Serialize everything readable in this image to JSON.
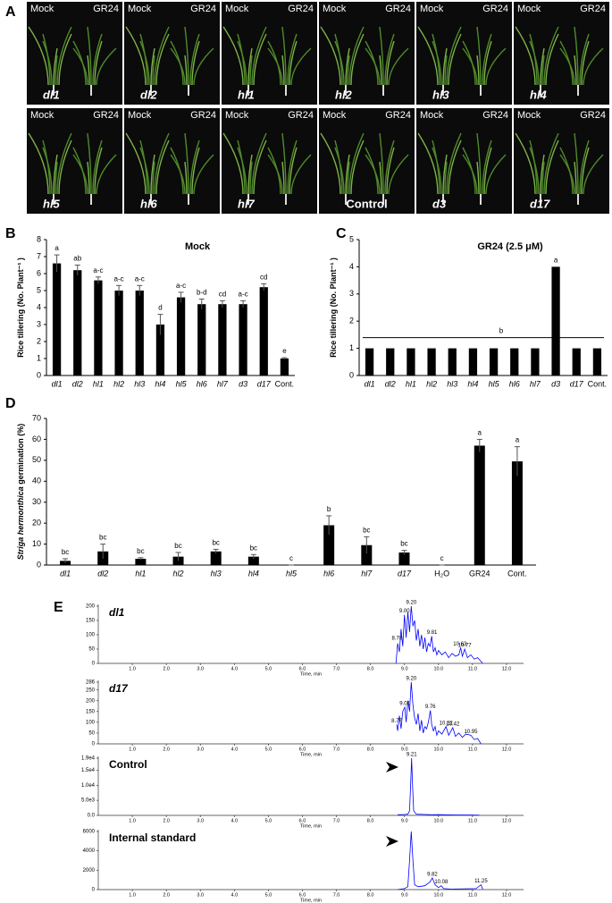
{
  "panel_labels": [
    "A",
    "B",
    "C",
    "D",
    "E"
  ],
  "photos": {
    "left": "Mock",
    "right": "GR24",
    "labels": [
      "dl1",
      "dl2",
      "hl1",
      "hl2",
      "hl3",
      "hl4",
      "hl5",
      "hl6",
      "hl7",
      "Control",
      "d3",
      "d17"
    ]
  },
  "chart_data": [
    {
      "type": "bar",
      "title": "Mock",
      "ylabel": "Rice tillering (No. Plant⁻¹ )",
      "color": "#000000",
      "categories": [
        "dl1",
        "dl2",
        "hl1",
        "hl2",
        "hl3",
        "hl4",
        "hl5",
        "hl6",
        "hl7",
        "d3",
        "d17",
        "Cont."
      ],
      "values": [
        6.6,
        6.2,
        5.6,
        5,
        5,
        3,
        4.6,
        4.2,
        4.2,
        4.2,
        5.2,
        1
      ],
      "errors": [
        0.5,
        0.3,
        0.2,
        0.3,
        0.3,
        0.6,
        0.3,
        0.3,
        0.2,
        0.2,
        0.2,
        0.05
      ],
      "letters": [
        "a",
        "ab",
        "a-c",
        "a-c",
        "a-c",
        "d",
        "a-c",
        "b-d",
        "cd",
        "a-c",
        "cd",
        "e"
      ],
      "ylim": [
        0,
        8
      ],
      "yticks": [
        0,
        1,
        2,
        3,
        4,
        5,
        6,
        7,
        8
      ]
    },
    {
      "type": "bar",
      "title": "GR24 (2.5 μM)",
      "ylabel": "Rice tillering (No. Plant⁻¹ )",
      "color": "#000000",
      "categories": [
        "dl1",
        "dl2",
        "hl1",
        "hl2",
        "hl3",
        "hl4",
        "hl5",
        "hl6",
        "hl7",
        "d3",
        "d17",
        "Cont."
      ],
      "values": [
        1,
        1,
        1,
        1,
        1,
        1,
        1,
        1,
        1,
        4,
        1,
        1
      ],
      "letters": [
        null,
        null,
        null,
        null,
        null,
        null,
        null,
        null,
        null,
        "a",
        null,
        null
      ],
      "group_label": "b",
      "ylim": [
        0,
        5
      ],
      "yticks": [
        0,
        1,
        2,
        3,
        4,
        5
      ]
    },
    {
      "type": "bar",
      "ylabel": [
        "Striga hermonthica",
        "germination (%)"
      ],
      "color": "#000000",
      "categories": [
        "dl1",
        "dl2",
        "hl1",
        "hl2",
        "hl3",
        "hl4",
        "hl5",
        "hl6",
        "hl7",
        "d17",
        "H₂O",
        "GR24",
        "Cont."
      ],
      "values": [
        2,
        6.5,
        3,
        4,
        6.5,
        4,
        0,
        19,
        9.5,
        6,
        0,
        57,
        49.5
      ],
      "errors": [
        1,
        3.5,
        0.5,
        2,
        1,
        1,
        0,
        4.5,
        4,
        1,
        0,
        3,
        7
      ],
      "letters": [
        "bc",
        "bc",
        "bc",
        "bc",
        "bc",
        "bc",
        "c",
        "b",
        "bc",
        "bc",
        "c",
        "a",
        "a"
      ],
      "ylim": [
        0,
        70
      ],
      "yticks": [
        0,
        10,
        20,
        30,
        40,
        50,
        60,
        70
      ]
    },
    {
      "type": "line",
      "sample": "dl1",
      "xlabel": "Time, min",
      "color": "#0000ff",
      "x": [
        8.75,
        8.8,
        8.85,
        8.9,
        8.95,
        9.0,
        9.05,
        9.1,
        9.15,
        9.2,
        9.25,
        9.3,
        9.35,
        9.4,
        9.45,
        9.5,
        9.55,
        9.6,
        9.65,
        9.7,
        9.75,
        9.8,
        9.85,
        9.9,
        9.95,
        10.0,
        10.1,
        10.2,
        10.3,
        10.4,
        10.5,
        10.6,
        10.65,
        10.7,
        10.77,
        10.85,
        10.95,
        11.05,
        11.15,
        11.3
      ],
      "values": [
        0,
        70,
        40,
        120,
        60,
        170,
        90,
        180,
        110,
        200,
        130,
        150,
        80,
        120,
        60,
        100,
        50,
        90,
        40,
        70,
        60,
        95,
        40,
        55,
        30,
        45,
        30,
        40,
        20,
        35,
        25,
        30,
        55,
        25,
        50,
        20,
        30,
        15,
        20,
        0
      ],
      "annotations": [
        {
          "x": 8.78,
          "y": 75,
          "text": "8.78"
        },
        {
          "x": 9.0,
          "y": 170,
          "text": "9.00"
        },
        {
          "x": 9.2,
          "y": 200,
          "text": "9.20"
        },
        {
          "x": 9.81,
          "y": 95,
          "text": "9.81"
        },
        {
          "x": 10.63,
          "y": 55,
          "text": "10.63"
        },
        {
          "x": 10.77,
          "y": 50,
          "text": "10.77"
        }
      ],
      "xlim": [
        0,
        12.5
      ],
      "xticks": [
        {
          "value": 1,
          "label": "1.0"
        },
        {
          "value": 2,
          "label": "2.0"
        },
        {
          "value": 3,
          "label": "3.0"
        },
        {
          "value": 4,
          "label": "4.0"
        },
        {
          "value": 5,
          "label": "5.0"
        },
        {
          "value": 6,
          "label": "6.0"
        },
        {
          "value": 7,
          "label": "7.0"
        },
        {
          "value": 8,
          "label": "8.0"
        },
        {
          "value": 9,
          "label": "9.0"
        },
        {
          "value": 10,
          "label": "10.0"
        },
        {
          "value": 11,
          "label": "11.0"
        },
        {
          "value": 12,
          "label": "12.0"
        }
      ],
      "ylim": [
        0,
        200
      ],
      "yticks": [
        0,
        50,
        100,
        150,
        200
      ]
    },
    {
      "type": "line",
      "sample": "d17",
      "xlabel": "Time, min",
      "color": "#0000ff",
      "x": [
        8.77,
        8.8,
        8.85,
        8.9,
        8.95,
        9.01,
        9.05,
        9.1,
        9.15,
        9.2,
        9.25,
        9.3,
        9.35,
        9.4,
        9.45,
        9.5,
        9.55,
        9.6,
        9.65,
        9.7,
        9.76,
        9.8,
        9.85,
        9.9,
        9.95,
        10.0,
        10.1,
        10.22,
        10.3,
        10.42,
        10.5,
        10.6,
        10.7,
        10.8,
        10.95,
        11.05,
        11.15,
        11.25
      ],
      "values": [
        90,
        60,
        130,
        70,
        150,
        170,
        100,
        200,
        150,
        286,
        180,
        120,
        90,
        140,
        60,
        110,
        50,
        80,
        70,
        100,
        155,
        90,
        60,
        80,
        40,
        60,
        45,
        80,
        40,
        75,
        35,
        50,
        30,
        45,
        40,
        20,
        25,
        0
      ],
      "annotations": [
        {
          "x": 8.77,
          "y": 90,
          "text": "8.77"
        },
        {
          "x": 9.01,
          "y": 170,
          "text": "9.01"
        },
        {
          "x": 9.2,
          "y": 286,
          "text": "9.20"
        },
        {
          "x": 9.76,
          "y": 155,
          "text": "9.76"
        },
        {
          "x": 10.22,
          "y": 80,
          "text": "10.22"
        },
        {
          "x": 10.42,
          "y": 75,
          "text": "10.42"
        },
        {
          "x": 10.95,
          "y": 40,
          "text": "10.95"
        }
      ],
      "xlim": [
        0,
        12.5
      ],
      "xticks": [
        {
          "value": 1,
          "label": "1.0"
        },
        {
          "value": 2,
          "label": "2.0"
        },
        {
          "value": 3,
          "label": "3.0"
        },
        {
          "value": 4,
          "label": "4.0"
        },
        {
          "value": 5,
          "label": "5.0"
        },
        {
          "value": 6,
          "label": "6.0"
        },
        {
          "value": 7,
          "label": "7.0"
        },
        {
          "value": 8,
          "label": "8.0"
        },
        {
          "value": 9,
          "label": "9.0"
        },
        {
          "value": 10,
          "label": "10.0"
        },
        {
          "value": 11,
          "label": "11.0"
        },
        {
          "value": 12,
          "label": "12.0"
        }
      ],
      "ylim": [
        0,
        286
      ],
      "yticks": [
        0,
        50,
        100,
        150,
        200,
        250,
        286
      ]
    },
    {
      "type": "line",
      "sample": "Control",
      "xlabel": "Time, min",
      "color": "#0000ff",
      "x": [
        8.8,
        9.0,
        9.1,
        9.15,
        9.18,
        9.21,
        9.24,
        9.27,
        9.35,
        9.6,
        9.8,
        10.0,
        10.5,
        11.0,
        11.2
      ],
      "values": [
        200,
        300,
        400,
        1500,
        10000,
        19000,
        9000,
        1500,
        400,
        300,
        200,
        250,
        150,
        100,
        50
      ],
      "annotations": [
        {
          "x": 9.21,
          "y": 19000,
          "text": "9.21"
        }
      ],
      "xlim": [
        0,
        12.5
      ],
      "xticks": [
        {
          "value": 1,
          "label": "1.0"
        },
        {
          "value": 2,
          "label": "2.0"
        },
        {
          "value": 3,
          "label": "3.0"
        },
        {
          "value": 4,
          "label": "4.0"
        },
        {
          "value": 5,
          "label": "5.0"
        },
        {
          "value": 6,
          "label": "6.0"
        },
        {
          "value": 7,
          "label": "7.0"
        },
        {
          "value": 8,
          "label": "8.0"
        },
        {
          "value": 9,
          "label": "9.0"
        },
        {
          "value": 10,
          "label": "10.0"
        },
        {
          "value": 11,
          "label": "11.0"
        },
        {
          "value": 12,
          "label": "12.0"
        }
      ],
      "ylim": [
        0,
        19000
      ],
      "yticks": [
        {
          "value": 0,
          "label": "0.0"
        },
        {
          "value": 5000,
          "label": "5.0e3"
        },
        {
          "value": 10000,
          "label": "1.0e4"
        },
        {
          "value": 15000,
          "label": "1.5e4"
        },
        {
          "value": 19000,
          "label": "1.9e4"
        }
      ]
    },
    {
      "type": "line",
      "sample": "Internal standard",
      "xlabel": "Time, min",
      "color": "#0000ff",
      "x": [
        8.8,
        9.0,
        9.1,
        9.15,
        9.2,
        9.25,
        9.3,
        9.4,
        9.6,
        9.75,
        9.82,
        9.9,
        10.0,
        10.08,
        10.15,
        10.4,
        10.8,
        11.1,
        11.25,
        11.3
      ],
      "values": [
        0,
        100,
        300,
        3000,
        6000,
        3000,
        500,
        300,
        400,
        800,
        1200,
        500,
        200,
        400,
        100,
        50,
        80,
        100,
        500,
        50
      ],
      "annotations": [
        {
          "x": 9.82,
          "y": 1200,
          "text": "9.82"
        },
        {
          "x": 10.08,
          "y": 400,
          "text": "10.08"
        },
        {
          "x": 11.25,
          "y": 500,
          "text": "11.25"
        }
      ],
      "xlim": [
        0,
        12.5
      ],
      "xticks": [
        {
          "value": 1,
          "label": "1.0"
        },
        {
          "value": 2,
          "label": "2.0"
        },
        {
          "value": 3,
          "label": "3.0"
        },
        {
          "value": 4,
          "label": "4.0"
        },
        {
          "value": 5,
          "label": "5.0"
        },
        {
          "value": 6,
          "label": "6.0"
        },
        {
          "value": 7,
          "label": "7.0"
        },
        {
          "value": 8,
          "label": "8.0"
        },
        {
          "value": 9,
          "label": "9.0"
        },
        {
          "value": 10,
          "label": "10.0"
        },
        {
          "value": 11,
          "label": "11.0"
        },
        {
          "value": 12,
          "label": "12.0"
        }
      ],
      "ylim": [
        0,
        6000
      ],
      "yticks": [
        0,
        2000,
        4000,
        6000
      ]
    }
  ]
}
